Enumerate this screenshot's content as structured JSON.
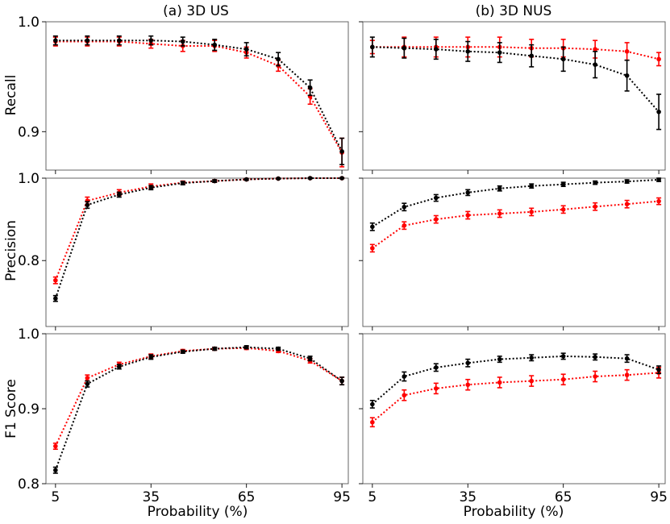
{
  "figure": {
    "columns": [
      {
        "key": "us",
        "title": "(a) 3D US"
      },
      {
        "key": "nus",
        "title": "(b) 3D NUS"
      }
    ],
    "rows": [
      {
        "key": "recall",
        "ylabel": "Recall",
        "ylim": [
          0.865,
          1.0
        ],
        "ticks": [
          0.9,
          1.0
        ],
        "tick_labels": [
          "0.9",
          "1.0"
        ]
      },
      {
        "key": "precision",
        "ylabel": "Precision",
        "ylim": [
          0.64,
          1.0
        ],
        "ticks": [
          0.8,
          1.0
        ],
        "tick_labels": [
          "0.8",
          "1.0"
        ]
      },
      {
        "key": "f1",
        "ylabel": "F1 Score",
        "ylim": [
          0.8,
          1.0
        ],
        "ticks": [
          0.8,
          0.9,
          1.0
        ],
        "tick_labels": [
          "0.8",
          "0.9",
          "1.0"
        ]
      }
    ],
    "xlabel": "Probability (%)",
    "xlim": [
      2,
      97
    ],
    "xticks": [
      5,
      35,
      65,
      95
    ],
    "xtick_labels": [
      "5",
      "35",
      "65",
      "95"
    ],
    "colors": {
      "series_a": "#000000",
      "series_b": "#ff0000",
      "frame": "#555555"
    }
  },
  "chart_data": [
    {
      "type": "line",
      "panel": "us-recall",
      "x": [
        5,
        15,
        25,
        35,
        45,
        55,
        65,
        75,
        85,
        95
      ],
      "ylim": [
        0.865,
        1.0
      ],
      "series": [
        {
          "name": "black",
          "color": "#000000",
          "values": [
            0.983,
            0.983,
            0.983,
            0.983,
            0.982,
            0.979,
            0.975,
            0.966,
            0.94,
            0.882
          ],
          "errors": [
            0.004,
            0.004,
            0.004,
            0.004,
            0.004,
            0.005,
            0.006,
            0.006,
            0.007,
            0.012
          ]
        },
        {
          "name": "red",
          "color": "#ff0000",
          "values": [
            0.982,
            0.982,
            0.982,
            0.98,
            0.978,
            0.978,
            0.972,
            0.96,
            0.932,
            0.881
          ],
          "errors": [
            0.004,
            0.004,
            0.004,
            0.004,
            0.005,
            0.005,
            0.005,
            0.005,
            0.007,
            0.013
          ]
        }
      ]
    },
    {
      "type": "line",
      "panel": "nus-recall",
      "x": [
        5,
        15,
        25,
        35,
        45,
        55,
        65,
        75,
        85,
        95
      ],
      "ylim": [
        0.865,
        1.0
      ],
      "series": [
        {
          "name": "black",
          "color": "#000000",
          "values": [
            0.977,
            0.976,
            0.975,
            0.973,
            0.972,
            0.969,
            0.966,
            0.961,
            0.951,
            0.918
          ],
          "errors": [
            0.009,
            0.009,
            0.009,
            0.009,
            0.009,
            0.01,
            0.011,
            0.012,
            0.014,
            0.016
          ]
        },
        {
          "name": "red",
          "color": "#ff0000",
          "values": [
            0.977,
            0.977,
            0.977,
            0.977,
            0.977,
            0.976,
            0.976,
            0.975,
            0.973,
            0.966
          ],
          "errors": [
            0.006,
            0.009,
            0.009,
            0.009,
            0.009,
            0.008,
            0.008,
            0.008,
            0.008,
            0.006
          ]
        }
      ]
    },
    {
      "type": "line",
      "panel": "us-precision",
      "x": [
        5,
        15,
        25,
        35,
        45,
        55,
        65,
        75,
        85,
        95
      ],
      "ylim": [
        0.64,
        1.0
      ],
      "series": [
        {
          "name": "black",
          "color": "#000000",
          "values": [
            0.708,
            0.935,
            0.96,
            0.977,
            0.988,
            0.993,
            0.997,
            0.999,
            1.0,
            1.0
          ],
          "errors": [
            0.007,
            0.008,
            0.006,
            0.005,
            0.004,
            0.003,
            0.002,
            0.001,
            0.001,
            0.001
          ]
        },
        {
          "name": "red",
          "color": "#ff0000",
          "values": [
            0.752,
            0.945,
            0.965,
            0.98,
            0.989,
            0.993,
            0.997,
            0.999,
            1.0,
            1.0
          ],
          "errors": [
            0.008,
            0.009,
            0.007,
            0.006,
            0.004,
            0.003,
            0.002,
            0.001,
            0.001,
            0.001
          ]
        }
      ]
    },
    {
      "type": "line",
      "panel": "nus-precision",
      "x": [
        5,
        15,
        25,
        35,
        45,
        55,
        65,
        75,
        85,
        95
      ],
      "ylim": [
        0.64,
        1.0
      ],
      "series": [
        {
          "name": "black",
          "color": "#000000",
          "values": [
            0.882,
            0.93,
            0.952,
            0.965,
            0.975,
            0.981,
            0.985,
            0.989,
            0.992,
            0.996
          ],
          "errors": [
            0.009,
            0.009,
            0.008,
            0.007,
            0.006,
            0.005,
            0.005,
            0.004,
            0.004,
            0.004
          ]
        },
        {
          "name": "red",
          "color": "#ff0000",
          "values": [
            0.83,
            0.885,
            0.9,
            0.91,
            0.914,
            0.918,
            0.924,
            0.931,
            0.937,
            0.944
          ],
          "errors": [
            0.009,
            0.009,
            0.009,
            0.009,
            0.009,
            0.009,
            0.009,
            0.009,
            0.009,
            0.008
          ]
        }
      ]
    },
    {
      "type": "line",
      "panel": "us-f1",
      "x": [
        5,
        15,
        25,
        35,
        45,
        55,
        65,
        75,
        85,
        95
      ],
      "ylim": [
        0.8,
        1.0
      ],
      "series": [
        {
          "name": "black",
          "color": "#000000",
          "values": [
            0.818,
            0.933,
            0.956,
            0.969,
            0.976,
            0.98,
            0.982,
            0.98,
            0.967,
            0.937
          ],
          "errors": [
            0.004,
            0.004,
            0.003,
            0.003,
            0.002,
            0.002,
            0.002,
            0.002,
            0.003,
            0.005
          ]
        },
        {
          "name": "red",
          "color": "#ff0000",
          "values": [
            0.85,
            0.941,
            0.959,
            0.97,
            0.977,
            0.98,
            0.981,
            0.977,
            0.964,
            0.937
          ],
          "errors": [
            0.004,
            0.004,
            0.003,
            0.003,
            0.002,
            0.002,
            0.002,
            0.002,
            0.003,
            0.005
          ]
        }
      ]
    },
    {
      "type": "line",
      "panel": "nus-f1",
      "x": [
        5,
        15,
        25,
        35,
        45,
        55,
        65,
        75,
        85,
        95
      ],
      "ylim": [
        0.8,
        1.0
      ],
      "series": [
        {
          "name": "black",
          "color": "#000000",
          "values": [
            0.906,
            0.943,
            0.955,
            0.961,
            0.966,
            0.968,
            0.97,
            0.969,
            0.967,
            0.952
          ],
          "errors": [
            0.005,
            0.006,
            0.005,
            0.005,
            0.004,
            0.004,
            0.004,
            0.004,
            0.005,
            0.005
          ]
        },
        {
          "name": "red",
          "color": "#ff0000",
          "values": [
            0.882,
            0.918,
            0.927,
            0.932,
            0.935,
            0.937,
            0.939,
            0.943,
            0.945,
            0.948
          ],
          "errors": [
            0.006,
            0.007,
            0.007,
            0.007,
            0.007,
            0.007,
            0.007,
            0.007,
            0.007,
            0.007
          ]
        }
      ]
    }
  ]
}
